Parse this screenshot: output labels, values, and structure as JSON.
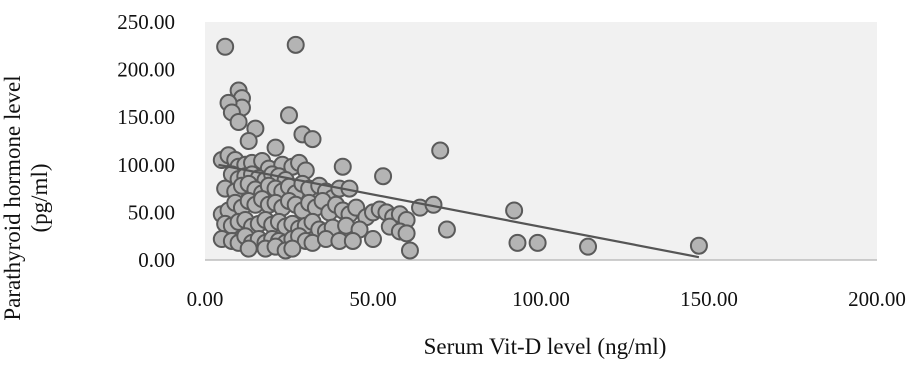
{
  "chart_data": {
    "type": "scatter",
    "title": "",
    "xlabel": "Serum Vit-D level (ng/ml)",
    "ylabel_line1": "Parathyroid hormone level",
    "ylabel_line2": "(pg/ml)",
    "xlim": [
      0,
      200
    ],
    "ylim": [
      0,
      250
    ],
    "xticks": [
      "0.00",
      "50.00",
      "100.00",
      "150.00",
      "200.00"
    ],
    "yticks": [
      "0.00",
      "50.00",
      "100.00",
      "150.00",
      "200.00",
      "250.00"
    ],
    "grid": false,
    "legend": "none",
    "point_color": "#b4b4b4",
    "point_edge_color": "#5a5a5a",
    "trendline": {
      "type": "linear",
      "x": [
        4,
        147
      ],
      "y": [
        100,
        3
      ]
    },
    "series": [
      {
        "points": [
          [
            6,
            224
          ],
          [
            27,
            226
          ],
          [
            10,
            178
          ],
          [
            11,
            170
          ],
          [
            11,
            160
          ],
          [
            7,
            165
          ],
          [
            8,
            155
          ],
          [
            10,
            145
          ],
          [
            15,
            138
          ],
          [
            13,
            125
          ],
          [
            25,
            152
          ],
          [
            29,
            132
          ],
          [
            32,
            127
          ],
          [
            70,
            115
          ],
          [
            41,
            98
          ],
          [
            53,
            88
          ],
          [
            5,
            105
          ],
          [
            7,
            110
          ],
          [
            9,
            105
          ],
          [
            10,
            98
          ],
          [
            12,
            100
          ],
          [
            14,
            102
          ],
          [
            17,
            104
          ],
          [
            19,
            96
          ],
          [
            21,
            118
          ],
          [
            23,
            100
          ],
          [
            26,
            98
          ],
          [
            28,
            102
          ],
          [
            30,
            94
          ],
          [
            8,
            90
          ],
          [
            10,
            85
          ],
          [
            12,
            88
          ],
          [
            14,
            90
          ],
          [
            16,
            86
          ],
          [
            18,
            84
          ],
          [
            20,
            90
          ],
          [
            22,
            88
          ],
          [
            24,
            84
          ],
          [
            6,
            75
          ],
          [
            9,
            72
          ],
          [
            11,
            78
          ],
          [
            13,
            80
          ],
          [
            15,
            74
          ],
          [
            17,
            70
          ],
          [
            19,
            78
          ],
          [
            21,
            75
          ],
          [
            23,
            72
          ],
          [
            25,
            77
          ],
          [
            27,
            70
          ],
          [
            29,
            80
          ],
          [
            31,
            75
          ],
          [
            34,
            78
          ],
          [
            36,
            72
          ],
          [
            38,
            65
          ],
          [
            40,
            75
          ],
          [
            43,
            75
          ],
          [
            5,
            48
          ],
          [
            7,
            52
          ],
          [
            9,
            60
          ],
          [
            11,
            55
          ],
          [
            13,
            62
          ],
          [
            15,
            58
          ],
          [
            17,
            64
          ],
          [
            19,
            58
          ],
          [
            21,
            60
          ],
          [
            23,
            55
          ],
          [
            25,
            62
          ],
          [
            27,
            58
          ],
          [
            29,
            52
          ],
          [
            31,
            60
          ],
          [
            33,
            55
          ],
          [
            35,
            62
          ],
          [
            37,
            50
          ],
          [
            39,
            58
          ],
          [
            41,
            52
          ],
          [
            43,
            48
          ],
          [
            45,
            55
          ],
          [
            48,
            45
          ],
          [
            50,
            50
          ],
          [
            52,
            53
          ],
          [
            54,
            50
          ],
          [
            56,
            45
          ],
          [
            58,
            48
          ],
          [
            60,
            42
          ],
          [
            64,
            55
          ],
          [
            68,
            58
          ],
          [
            92,
            52
          ],
          [
            6,
            38
          ],
          [
            8,
            36
          ],
          [
            10,
            40
          ],
          [
            12,
            42
          ],
          [
            14,
            35
          ],
          [
            16,
            38
          ],
          [
            18,
            42
          ],
          [
            20,
            37
          ],
          [
            22,
            40
          ],
          [
            24,
            35
          ],
          [
            26,
            38
          ],
          [
            28,
            33
          ],
          [
            30,
            36
          ],
          [
            32,
            40
          ],
          [
            34,
            32
          ],
          [
            36,
            30
          ],
          [
            38,
            34
          ],
          [
            42,
            36
          ],
          [
            46,
            32
          ],
          [
            55,
            35
          ],
          [
            58,
            30
          ],
          [
            72,
            32
          ],
          [
            5,
            22
          ],
          [
            8,
            20
          ],
          [
            10,
            18
          ],
          [
            12,
            25
          ],
          [
            14,
            18
          ],
          [
            16,
            22
          ],
          [
            18,
            18
          ],
          [
            20,
            22
          ],
          [
            22,
            20
          ],
          [
            24,
            18
          ],
          [
            26,
            22
          ],
          [
            28,
            25
          ],
          [
            30,
            20
          ],
          [
            32,
            18
          ],
          [
            36,
            22
          ],
          [
            40,
            20
          ],
          [
            44,
            20
          ],
          [
            50,
            22
          ],
          [
            60,
            28
          ],
          [
            93,
            18
          ],
          [
            99,
            18
          ],
          [
            114,
            14
          ],
          [
            147,
            15
          ],
          [
            13,
            12
          ],
          [
            18,
            12
          ],
          [
            21,
            14
          ],
          [
            24,
            10
          ],
          [
            26,
            12
          ],
          [
            61,
            10
          ]
        ]
      }
    ]
  }
}
